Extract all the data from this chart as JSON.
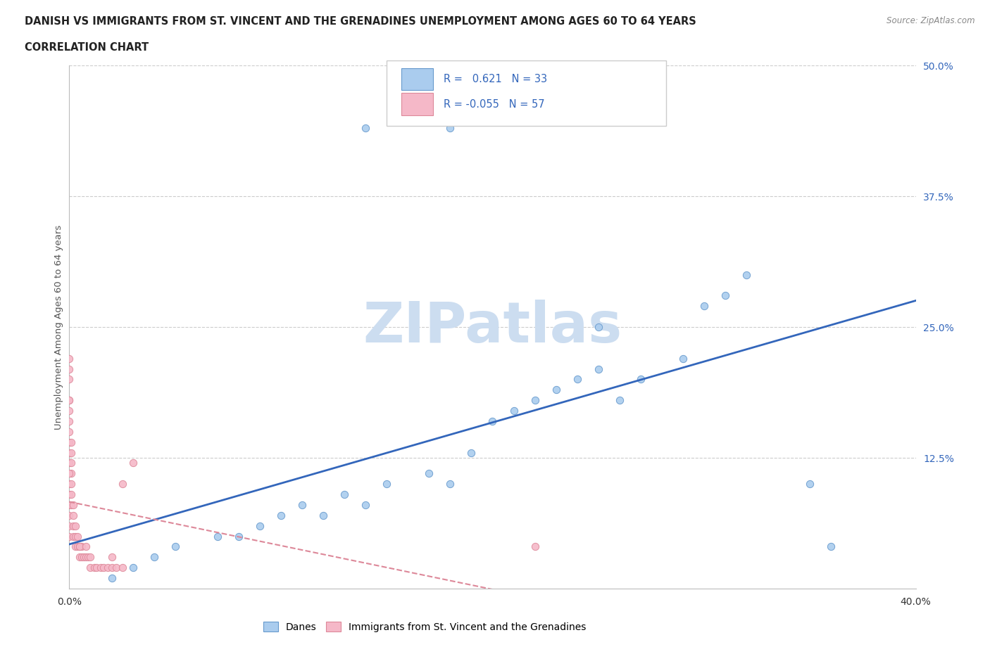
{
  "title_line1": "DANISH VS IMMIGRANTS FROM ST. VINCENT AND THE GRENADINES UNEMPLOYMENT AMONG AGES 60 TO 64 YEARS",
  "title_line2": "CORRELATION CHART",
  "source_text": "Source: ZipAtlas.com",
  "ylabel": "Unemployment Among Ages 60 to 64 years",
  "xlim": [
    0.0,
    0.4
  ],
  "ylim": [
    0.0,
    0.5
  ],
  "xtick_positions": [
    0.0,
    0.4
  ],
  "xtick_labels": [
    "0.0%",
    "40.0%"
  ],
  "yticks_right": [
    0.125,
    0.25,
    0.375,
    0.5
  ],
  "ytick_labels_right": [
    "12.5%",
    "25.0%",
    "37.5%",
    "50.0%"
  ],
  "danes_R": 0.621,
  "danes_N": 33,
  "immigrants_R": -0.055,
  "immigrants_N": 57,
  "danes_color": "#aaccee",
  "danes_edge_color": "#6699cc",
  "danes_line_color": "#3366bb",
  "immigrants_color": "#f5b8c8",
  "immigrants_edge_color": "#dd8899",
  "immigrants_line_color": "#dd8899",
  "watermark": "ZIPatlas",
  "watermark_color": "#ccddf0",
  "danes_scatter_x": [
    0.02,
    0.03,
    0.04,
    0.05,
    0.07,
    0.08,
    0.09,
    0.1,
    0.11,
    0.12,
    0.13,
    0.14,
    0.15,
    0.17,
    0.18,
    0.19,
    0.2,
    0.21,
    0.22,
    0.23,
    0.24,
    0.25,
    0.26,
    0.27,
    0.29,
    0.3,
    0.31,
    0.35,
    0.36,
    0.14,
    0.18,
    0.25,
    0.32
  ],
  "danes_scatter_y": [
    0.01,
    0.02,
    0.03,
    0.04,
    0.05,
    0.05,
    0.06,
    0.07,
    0.08,
    0.07,
    0.09,
    0.08,
    0.1,
    0.11,
    0.1,
    0.13,
    0.16,
    0.17,
    0.18,
    0.19,
    0.2,
    0.21,
    0.18,
    0.2,
    0.22,
    0.27,
    0.28,
    0.1,
    0.04,
    0.44,
    0.44,
    0.25,
    0.3
  ],
  "immigrants_scatter_x": [
    0.0,
    0.0,
    0.0,
    0.0,
    0.0,
    0.0,
    0.0,
    0.0,
    0.0,
    0.0,
    0.0,
    0.0,
    0.001,
    0.001,
    0.001,
    0.001,
    0.001,
    0.002,
    0.002,
    0.002,
    0.003,
    0.003,
    0.004,
    0.004,
    0.005,
    0.005,
    0.006,
    0.006,
    0.007,
    0.008,
    0.009,
    0.01,
    0.01,
    0.012,
    0.013,
    0.015,
    0.016,
    0.018,
    0.02,
    0.022,
    0.025,
    0.0,
    0.0,
    0.0,
    0.0,
    0.0,
    0.0,
    0.001,
    0.001,
    0.002,
    0.003,
    0.005,
    0.008,
    0.02,
    0.025,
    0.03,
    0.22
  ],
  "immigrants_scatter_y": [
    0.2,
    0.18,
    0.17,
    0.15,
    0.13,
    0.12,
    0.1,
    0.09,
    0.08,
    0.07,
    0.06,
    0.05,
    0.12,
    0.11,
    0.1,
    0.09,
    0.08,
    0.07,
    0.06,
    0.05,
    0.05,
    0.04,
    0.05,
    0.04,
    0.04,
    0.03,
    0.04,
    0.03,
    0.03,
    0.03,
    0.03,
    0.03,
    0.02,
    0.02,
    0.02,
    0.02,
    0.02,
    0.02,
    0.02,
    0.02,
    0.02,
    0.22,
    0.21,
    0.18,
    0.16,
    0.14,
    0.11,
    0.14,
    0.13,
    0.08,
    0.06,
    0.04,
    0.04,
    0.03,
    0.1,
    0.12,
    0.04
  ],
  "legend_danes_text": "R =   0.621   N = 33",
  "legend_imm_text": "R = -0.055   N = 57",
  "bottom_legend_label1": "Danes",
  "bottom_legend_label2": "Immigrants from St. Vincent and the Grenadines"
}
